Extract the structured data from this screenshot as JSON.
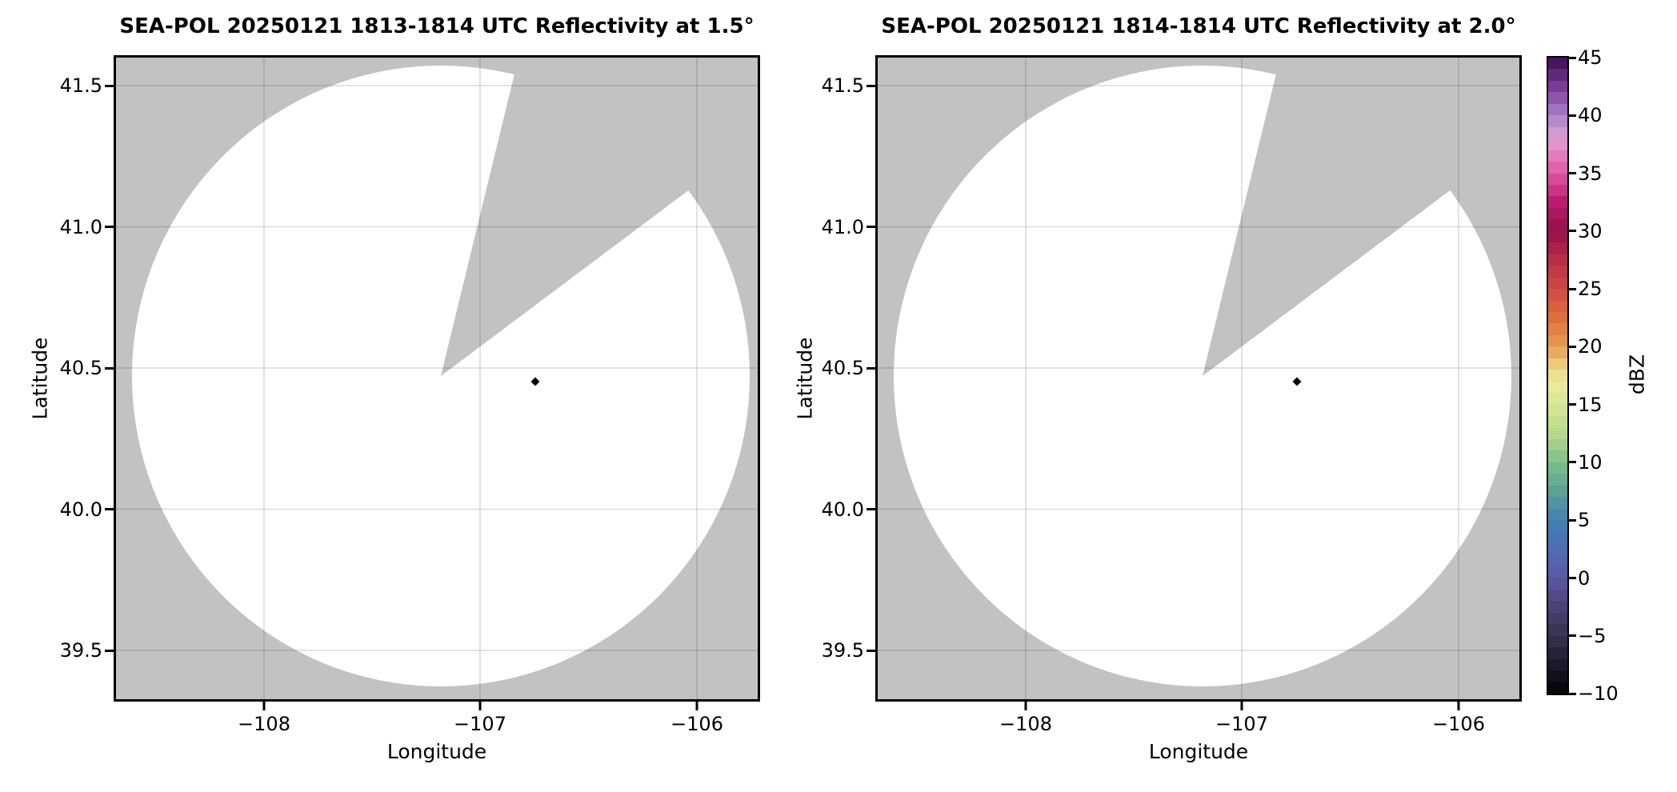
{
  "chart_data": {
    "type": "radar_ppi_panels",
    "description_of_pixels": "Two side-by-side radar PPI maps on gray background; white circular scan area with a gray missing-data sector wedge opening toward the upper right; a single black diamond marker inside each scan area; shared discrete spectral colorbar labeled dBZ on the right.",
    "panels": [
      {
        "type": "radar_ppi",
        "title": "SEA-POL 20250121 1813-1814 UTC Reflectivity at 1.5°",
        "radar_name": "SEA-POL",
        "date": "20250121",
        "time_utc": "1813-1814",
        "field": "Reflectivity",
        "elevation_deg": 1.5,
        "xlabel": "Longitude",
        "ylabel": "Latitude",
        "xlim": [
          -108.68,
          -105.72
        ],
        "ylim": [
          39.33,
          41.6
        ],
        "x_ticks": [
          -108,
          -107,
          -106
        ],
        "x_tick_labels": [
          "−108",
          "−107",
          "−106"
        ],
        "y_ticks": [
          41.5,
          41.0,
          40.5,
          40.0,
          39.5
        ],
        "y_tick_labels": [
          "41.5",
          "41.0",
          "40.5",
          "40.0",
          "39.5"
        ],
        "grid": true,
        "radar_center": {
          "lon": -107.18,
          "lat": 40.47
        },
        "scan_radius_deg_lat": 1.1,
        "missing_sector_azimuth_deg": [
          13.7,
          53.1
        ],
        "scan_area_fill": "no echoes displayed (white)",
        "marker": {
          "shape": "diamond",
          "color": "#000000",
          "lon": -106.75,
          "lat": 40.45
        }
      },
      {
        "type": "radar_ppi",
        "title": "SEA-POL 20250121 1814-1814 UTC Reflectivity at 2.0°",
        "radar_name": "SEA-POL",
        "date": "20250121",
        "time_utc": "1814-1814",
        "field": "Reflectivity",
        "elevation_deg": 2.0,
        "xlabel": "Longitude",
        "ylabel": "Latitude",
        "xlim": [
          -108.68,
          -105.72
        ],
        "ylim": [
          39.33,
          41.6
        ],
        "x_ticks": [
          -108,
          -107,
          -106
        ],
        "x_tick_labels": [
          "−108",
          "−107",
          "−106"
        ],
        "y_ticks": [
          41.5,
          41.0,
          40.5,
          40.0,
          39.5
        ],
        "y_tick_labels": [
          "41.5",
          "41.0",
          "40.5",
          "40.0",
          "39.5"
        ],
        "grid": true,
        "radar_center": {
          "lon": -107.18,
          "lat": 40.47
        },
        "scan_radius_deg_lat": 1.1,
        "missing_sector_azimuth_deg": [
          13.7,
          53.1
        ],
        "scan_area_fill": "no echoes displayed (white)",
        "marker": {
          "shape": "diamond",
          "color": "#000000",
          "lon": -106.75,
          "lat": 40.45
        }
      }
    ],
    "colorbar": {
      "label": "dBZ",
      "min": -10,
      "max": 45,
      "step_dbz": 1,
      "tick_values": [
        45,
        40,
        35,
        30,
        25,
        20,
        15,
        10,
        5,
        0,
        -5,
        -10
      ],
      "tick_labels": [
        "45",
        "40",
        "35",
        "30",
        "25",
        "20",
        "15",
        "10",
        "5",
        "0",
        "−5",
        "−10"
      ],
      "colormap_stops": [
        {
          "value": -10,
          "color": "#050407"
        },
        {
          "value": -7.5,
          "color": "#1d1829"
        },
        {
          "value": -5,
          "color": "#393250"
        },
        {
          "value": -2.5,
          "color": "#4b4377"
        },
        {
          "value": 0,
          "color": "#5b58a5"
        },
        {
          "value": 2.5,
          "color": "#4d6fb3"
        },
        {
          "value": 5,
          "color": "#4281b4"
        },
        {
          "value": 7.5,
          "color": "#5da195"
        },
        {
          "value": 10,
          "color": "#7ebf89"
        },
        {
          "value": 12.5,
          "color": "#b8d88e"
        },
        {
          "value": 15,
          "color": "#d7e794"
        },
        {
          "value": 17,
          "color": "#eeeb9e"
        },
        {
          "value": 18.5,
          "color": "#ecc97b"
        },
        {
          "value": 20,
          "color": "#e69c52"
        },
        {
          "value": 22.5,
          "color": "#dd6f3c"
        },
        {
          "value": 25,
          "color": "#d14a43"
        },
        {
          "value": 27.5,
          "color": "#b92e45"
        },
        {
          "value": 30,
          "color": "#94104a"
        },
        {
          "value": 32.5,
          "color": "#bb1c71"
        },
        {
          "value": 35,
          "color": "#dd58a2"
        },
        {
          "value": 36.5,
          "color": "#e37cbc"
        },
        {
          "value": 38,
          "color": "#e0a2d5"
        },
        {
          "value": 40,
          "color": "#ab80c8"
        },
        {
          "value": 42.5,
          "color": "#7b3a98"
        },
        {
          "value": 45,
          "color": "#3a0d50"
        }
      ]
    },
    "styles": {
      "plot_background": "#c2c2c2",
      "scan_area": "#ffffff",
      "spine": "#000000",
      "marker": "#000000",
      "figure_background": "#ffffff"
    }
  }
}
